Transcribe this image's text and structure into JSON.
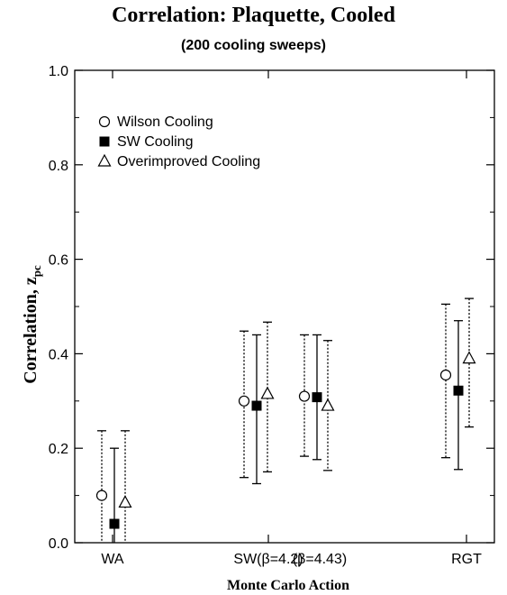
{
  "chart_data": {
    "type": "scatter",
    "title": "Correlation: Plaquette, Cooled",
    "subtitle": "(200 cooling sweeps)",
    "xlabel": "Monte Carlo Action",
    "ylabel_main": "Correlation, z",
    "ylabel_sub": "pc",
    "ylim": [
      0,
      1.0
    ],
    "yticks": [
      "0.0",
      "0.2",
      "0.4",
      "0.6",
      "0.8",
      "1.0"
    ],
    "ytick_values": [
      0,
      0.2,
      0.4,
      0.6,
      0.8,
      1.0
    ],
    "categories": [
      "WA",
      "SW(β=4.2)",
      "(β=4.43)",
      "RGT"
    ],
    "legend_position": "top-left",
    "series": [
      {
        "name": "Wilson Cooling",
        "marker": "open-circle",
        "line": "dotted",
        "values": [
          0.1,
          0.3,
          0.31,
          0.355
        ],
        "lower": [
          -0.035,
          0.138,
          0.183,
          0.18
        ],
        "upper": [
          0.237,
          0.448,
          0.44,
          0.505
        ]
      },
      {
        "name": "SW Cooling",
        "marker": "filled-square",
        "line": "solid",
        "values": [
          0.04,
          0.29,
          0.308,
          0.322
        ],
        "lower": [
          -0.12,
          0.125,
          0.176,
          0.155
        ],
        "upper": [
          0.2,
          0.44,
          0.44,
          0.47
        ]
      },
      {
        "name": "Overimproved Cooling",
        "marker": "open-triangle",
        "line": "dotted",
        "values": [
          0.085,
          0.315,
          0.29,
          0.39
        ],
        "lower": [
          -0.07,
          0.15,
          0.153,
          0.245
        ],
        "upper": [
          0.237,
          0.467,
          0.428,
          0.517
        ]
      }
    ]
  }
}
